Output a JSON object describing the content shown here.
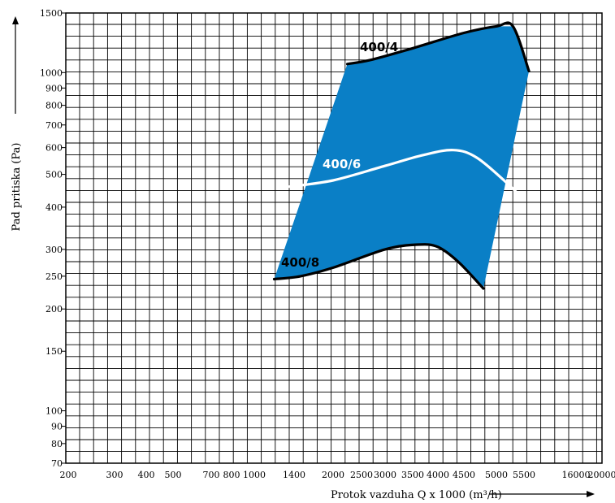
{
  "chart_data": {
    "type": "line",
    "xlabel": "Protok vazduha  Q x 1000 (m³/h)",
    "ylabel": "Pad pritiska (Pa)",
    "x_ticks": [
      "200",
      "300",
      "400",
      "500",
      "700",
      "800",
      "1000",
      "1400",
      "2000",
      "2500",
      "3000",
      "3500",
      "4000",
      "4500",
      "5000",
      "5500",
      "16000",
      "20000"
    ],
    "y_ticks": [
      "70",
      "80",
      "90",
      "100",
      "150",
      "200",
      "250",
      "300",
      "400",
      "500",
      "600",
      "700",
      "800",
      "900",
      "1000",
      "1500"
    ],
    "grid": true,
    "operating_area_color": "#0a7fc6",
    "series": [
      {
        "name": "400/4",
        "color": "#000000",
        "x": [
          2250,
          2700,
          3500,
          4500,
          5000,
          5300,
          6500
        ],
        "y": [
          1060,
          1090,
          1180,
          1310,
          1370,
          1370,
          1010
        ]
      },
      {
        "name": "400/6",
        "color": "#ffffff",
        "x": [
          1350,
          2000,
          3000,
          3700,
          4300,
          4700,
          5200,
          5500
        ],
        "y": [
          460,
          480,
          530,
          570,
          590,
          560,
          470,
          420
        ]
      },
      {
        "name": "400/8",
        "color": "#000000",
        "x": [
          1200,
          1500,
          2000,
          3000,
          3600,
          4000,
          4400,
          4800
        ],
        "y": [
          245,
          250,
          265,
          300,
          310,
          305,
          275,
          230
        ]
      }
    ],
    "area_polygon": {
      "x": [
        2250,
        2700,
        3500,
        4500,
        5000,
        5300,
        6500,
        4800,
        4400,
        4000,
        3600,
        3000,
        2000,
        1500,
        1200
      ],
      "y": [
        1060,
        1090,
        1180,
        1310,
        1370,
        1370,
        1010,
        230,
        275,
        305,
        310,
        300,
        265,
        250,
        245
      ]
    }
  }
}
